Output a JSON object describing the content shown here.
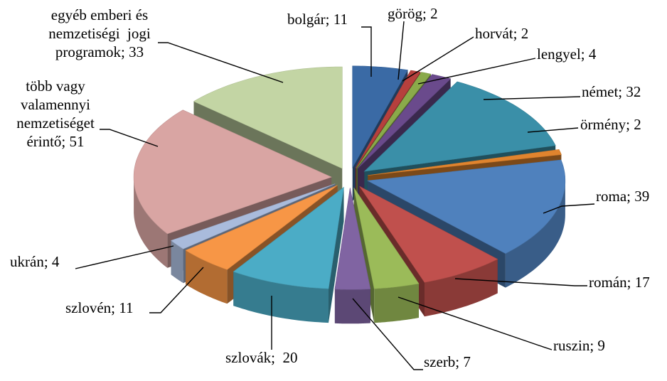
{
  "chart_data": {
    "type": "pie",
    "variant": "3d-exploded",
    "title": "",
    "legend": "none",
    "slices": [
      {
        "label": "bolgár; 11",
        "name": "bolgár",
        "value": 11,
        "color": "#3a6aa5"
      },
      {
        "label": "görög; 2",
        "name": "görög",
        "value": 2,
        "color": "#b6403d"
      },
      {
        "label": "horvát; 2",
        "name": "horvát",
        "value": 2,
        "color": "#8aaa4a"
      },
      {
        "label": "lengyel; 4",
        "name": "lengyel",
        "value": 4,
        "color": "#6a4a8c"
      },
      {
        "label": "német; 32",
        "name": "német",
        "value": 32,
        "color": "#3a8fa8"
      },
      {
        "label": "örmény; 2",
        "name": "örmény",
        "value": 2,
        "color": "#e0842e"
      },
      {
        "label": "roma; 39",
        "name": "roma",
        "value": 39,
        "color": "#4f81bd"
      },
      {
        "label": "román; 17",
        "name": "román",
        "value": 17,
        "color": "#c0504d"
      },
      {
        "label": "ruszin; 9",
        "name": "ruszin",
        "value": 9,
        "color": "#9bbb59"
      },
      {
        "label": "szerb; 7",
        "name": "szerb",
        "value": 7,
        "color": "#8064a2"
      },
      {
        "label": "szlovák;  20",
        "name": "szlovák",
        "value": 20,
        "color": "#4bacc6"
      },
      {
        "label": "szlovén; 11",
        "name": "szlovén",
        "value": 11,
        "color": "#f79646"
      },
      {
        "label": "ukrán; 4",
        "name": "ukrán",
        "value": 4,
        "color": "#a9bbdc"
      },
      {
        "label_lines": [
          "több vagy",
          "valamennyi",
          "nemzetiséget",
          "érintő; 51"
        ],
        "name": "több vagy valamennyi nemzetiséget érintő",
        "value": 51,
        "color": "#d9a5a3"
      },
      {
        "label_lines": [
          "egyéb emberi és",
          "nemzetiségi  jogi",
          "programok; 33"
        ],
        "name": "egyéb emberi és nemzetiségi jogi programok",
        "value": 33,
        "color": "#c3d5a4"
      }
    ]
  }
}
